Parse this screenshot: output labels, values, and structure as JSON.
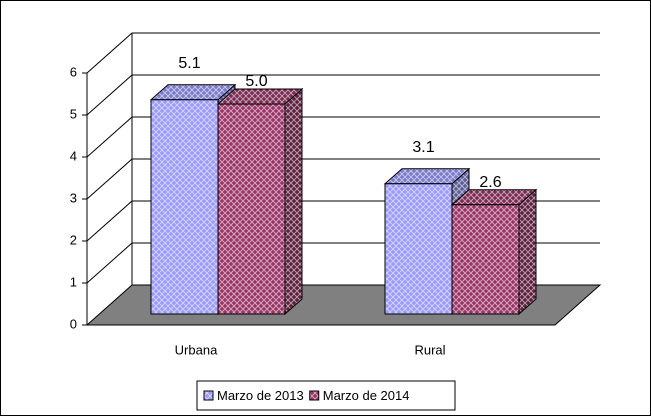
{
  "chart_data": {
    "type": "bar3d",
    "categories": [
      "Urbana",
      "Rural"
    ],
    "series": [
      {
        "name": "Marzo de 2013",
        "color": "#9999ff",
        "values": [
          5.1,
          3.1
        ],
        "value_labels": [
          "5.1",
          "3.1"
        ]
      },
      {
        "name": "Marzo de 2014",
        "color": "#993366",
        "values": [
          5,
          2.6
        ],
        "value_labels": [
          "5.0",
          "2.6"
        ]
      }
    ],
    "ylim": [
      0,
      6
    ],
    "yticks": [
      0,
      1,
      2,
      3,
      4,
      5,
      6
    ],
    "grid": true,
    "legend": "bottom"
  }
}
